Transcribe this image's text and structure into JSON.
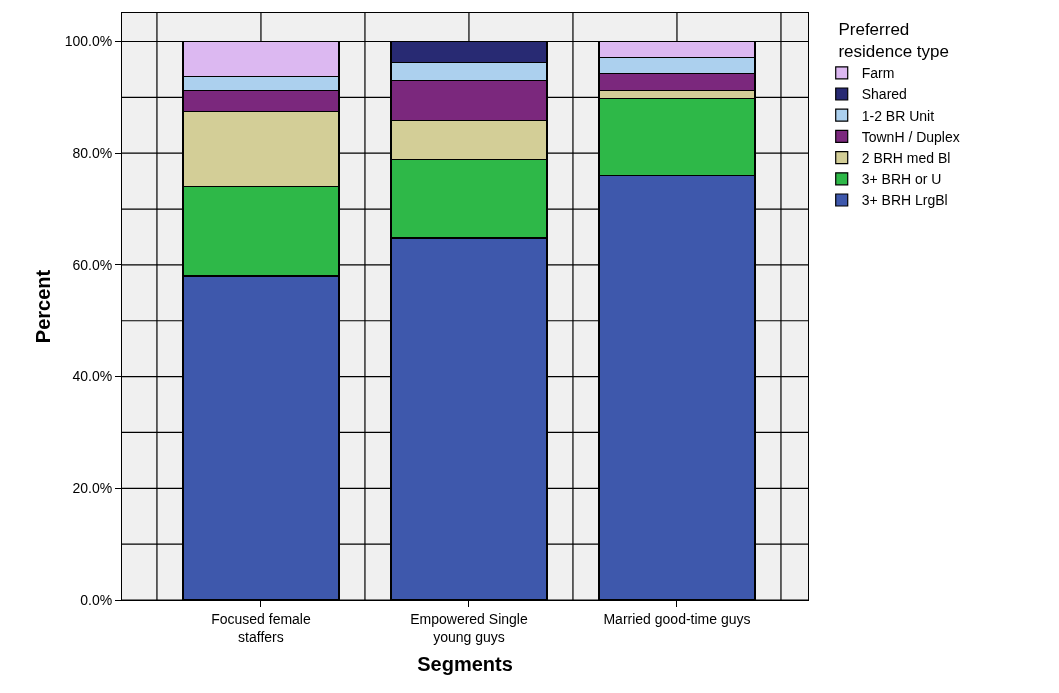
{
  "chart_data": {
    "type": "bar",
    "stacked": true,
    "xlabel": "Segments",
    "ylabel": "Percent",
    "legend_title": "Preferred residence type",
    "categories": [
      "Focused female staffers",
      "Empowered Single young guys",
      "Married good-time guys"
    ],
    "series": [
      {
        "name": "3+ BRH LrgBl",
        "color": "#3e58ac",
        "values": [
          58.0,
          64.8,
          76.0
        ]
      },
      {
        "name": "3+ BRH or U",
        "color": "#2eb848",
        "values": [
          16.0,
          14.1,
          13.8
        ]
      },
      {
        "name": "2 BRH med Bl",
        "color": "#d3ce97",
        "values": [
          13.4,
          7.0,
          1.4
        ]
      },
      {
        "name": "TownH / Duplex",
        "color": "#7b287d",
        "values": [
          3.8,
          7.1,
          3.0
        ]
      },
      {
        "name": "1-2 BR Unit",
        "color": "#acd0ee",
        "values": [
          2.6,
          3.3,
          2.9
        ]
      },
      {
        "name": "Shared",
        "color": "#282a73",
        "values": [
          null,
          3.7,
          null
        ]
      },
      {
        "name": "Farm",
        "color": "#dcb8f1",
        "values": [
          6.2,
          null,
          2.9
        ]
      }
    ],
    "ylim": [
      0,
      105.1
    ],
    "yticks": [
      {
        "value": 0,
        "label": "0.0%"
      },
      {
        "value": 20,
        "label": "20.0%"
      },
      {
        "value": 40,
        "label": "40.0%"
      },
      {
        "value": 60,
        "label": "60.0%"
      },
      {
        "value": 80,
        "label": "80.0%"
      },
      {
        "value": 100,
        "label": "100.0%"
      }
    ],
    "grid": true,
    "legend": "top right"
  }
}
